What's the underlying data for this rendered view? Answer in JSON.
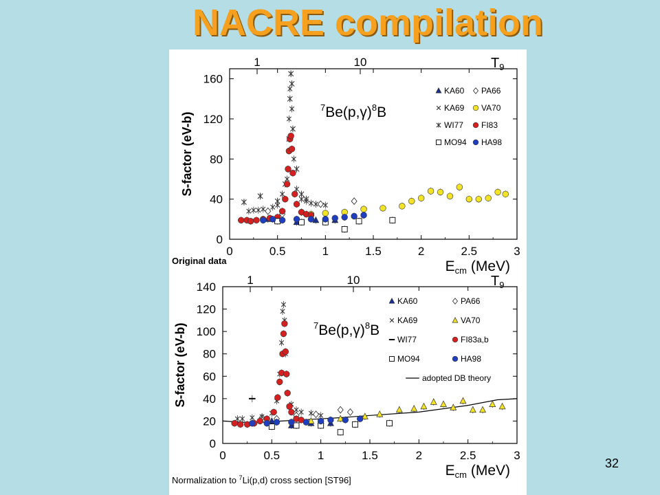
{
  "slide": {
    "title": "NACRE compilation",
    "number": "32"
  },
  "chart_data": [
    {
      "type": "scatter",
      "reaction_super_left": "7",
      "reaction_main": "Be(p,γ)",
      "reaction_super_right": "8",
      "reaction_end": "B",
      "ylabel": "S-factor (eV-b)",
      "xlabel_main": "E",
      "xlabel_sub": "cm",
      "xlabel_rest": " (MeV)",
      "top_axis_label": "T",
      "top_axis_sub": "9",
      "top_ticks": [
        {
          "v": 1,
          "label": "1"
        },
        {
          "v": 10,
          "label": "10"
        }
      ],
      "caption": "Original data",
      "xlim": [
        0,
        3
      ],
      "ylim": [
        0,
        170
      ],
      "xticks": [
        0,
        0.5,
        1,
        1.5,
        2,
        2.5,
        3
      ],
      "xtick_labels": [
        "0",
        "0.5",
        "1",
        "1.5",
        "2",
        "2.5",
        "3"
      ],
      "yticks": [
        0,
        40,
        80,
        120,
        160
      ],
      "ytick_labels": [
        "0",
        "40",
        "80",
        "120",
        "160"
      ],
      "legend": [
        {
          "label": "KA60",
          "marker": "tri",
          "color": "#1a2f8f"
        },
        {
          "label": "PA66",
          "marker": "diamond",
          "color": "#ffffff"
        },
        {
          "label": "KA69",
          "marker": "x",
          "color": "#333333"
        },
        {
          "label": "VA70",
          "marker": "circle",
          "color": "#f2e326"
        },
        {
          "label": "WI77",
          "marker": "star",
          "color": "#333333"
        },
        {
          "label": "FI83",
          "marker": "circle",
          "color": "#d42020"
        },
        {
          "label": "MO94",
          "marker": "square",
          "color": "#ffffff"
        },
        {
          "label": "HA98",
          "marker": "circle",
          "color": "#1f3fc0"
        }
      ],
      "series": [
        {
          "name": "KA60",
          "marker": "tri",
          "color": "#1a2f8f",
          "x": [
            0.4,
            0.5,
            0.7,
            0.9,
            1.1
          ],
          "y": [
            20,
            19,
            17,
            19,
            19
          ]
        },
        {
          "name": "PA66",
          "marker": "diamond",
          "color": "#ffffff",
          "x": [
            0.4,
            0.55,
            0.75,
            0.95,
            1.3
          ],
          "y": [
            28,
            25,
            27,
            35,
            38
          ]
        },
        {
          "name": "KA69",
          "marker": "x",
          "color": "#333333",
          "x": [
            0.2,
            0.25,
            0.3,
            0.35,
            0.45,
            0.5,
            0.55,
            0.6,
            0.62,
            0.63,
            0.65,
            0.67,
            0.7,
            0.75,
            0.8,
            0.85,
            0.9,
            1.0
          ],
          "y": [
            28,
            29,
            29,
            30,
            32,
            34,
            45,
            60,
            120,
            150,
            130,
            80,
            50,
            40,
            38,
            36,
            35,
            34
          ]
        },
        {
          "name": "VA70",
          "marker": "circle",
          "color": "#f2e326",
          "x": [
            0.85,
            1.0,
            1.2,
            1.4,
            1.6,
            1.8,
            1.9,
            2.0,
            2.1,
            2.2,
            2.3,
            2.4,
            2.5,
            2.6,
            2.7,
            2.8,
            2.88
          ],
          "y": [
            25,
            26,
            27,
            30,
            31,
            33,
            38,
            41,
            48,
            47,
            43,
            52,
            40,
            40,
            41,
            47,
            45
          ]
        },
        {
          "name": "WI77",
          "marker": "star",
          "color": "#333333",
          "x": [
            0.15,
            0.32,
            0.5,
            0.58,
            0.62,
            0.63,
            0.64,
            0.65,
            0.66,
            0.7,
            0.75,
            0.8
          ],
          "y": [
            37,
            43,
            38,
            55,
            100,
            140,
            165,
            155,
            110,
            70,
            45,
            40
          ]
        },
        {
          "name": "FI83",
          "marker": "circle",
          "color": "#d42020",
          "x": [
            0.12,
            0.18,
            0.22,
            0.28,
            0.35,
            0.42,
            0.5,
            0.55,
            0.58,
            0.6,
            0.61,
            0.62,
            0.63,
            0.64,
            0.65,
            0.66,
            0.68,
            0.7,
            0.75,
            0.8,
            0.85
          ],
          "y": [
            19,
            19,
            18,
            19,
            20,
            21,
            22,
            28,
            40,
            55,
            70,
            88,
            100,
            103,
            90,
            66,
            45,
            35,
            27,
            25,
            24
          ]
        },
        {
          "name": "MO94",
          "marker": "square",
          "color": "#ffffff",
          "x": [
            0.5,
            0.75,
            1.0,
            1.2,
            1.35,
            1.7
          ],
          "y": [
            18,
            17,
            17,
            10,
            18,
            19
          ]
        },
        {
          "name": "HA98",
          "marker": "circle",
          "color": "#1f3fc0",
          "x": [
            0.35,
            0.45,
            0.55,
            0.7,
            0.85,
            1.0,
            1.1,
            1.2,
            1.3,
            1.4
          ],
          "y": [
            19,
            20,
            19,
            20,
            20,
            20,
            21,
            22,
            23,
            24
          ]
        }
      ]
    },
    {
      "type": "scatter",
      "reaction_super_left": "7",
      "reaction_main": "Be(p,γ)",
      "reaction_super_right": "8",
      "reaction_end": "B",
      "ylabel": "S-factor (eV-b)",
      "xlabel_main": "E",
      "xlabel_sub": "cm",
      "xlabel_rest": " (MeV)",
      "top_axis_label": "T",
      "top_axis_sub": "9",
      "top_ticks": [
        {
          "v": 1,
          "label": "1"
        },
        {
          "v": 10,
          "label": "10"
        }
      ],
      "caption_prefix": "Normalization to ",
      "caption_super": "7",
      "caption_rest": "Li(p,d) cross section [ST96]",
      "xlim": [
        0,
        3
      ],
      "ylim": [
        0,
        140
      ],
      "xticks": [
        0,
        0.5,
        1,
        1.5,
        2,
        2.5,
        3
      ],
      "xtick_labels": [
        "0",
        "0.5",
        "1",
        "1.5",
        "2",
        "2.5",
        "3"
      ],
      "yticks": [
        0,
        20,
        40,
        60,
        80,
        100,
        120,
        140
      ],
      "ytick_labels": [
        "0",
        "20",
        "40",
        "60",
        "80",
        "100",
        "120",
        "140"
      ],
      "legend": [
        {
          "label": "KA60",
          "marker": "tri",
          "color": "#1a2f8f"
        },
        {
          "label": "PA66",
          "marker": "diamond",
          "color": "#ffffff"
        },
        {
          "label": "KA69",
          "marker": "x",
          "color": "#333333"
        },
        {
          "label": "VA70",
          "marker": "tri",
          "color": "#f2e326"
        },
        {
          "label": "WI77",
          "marker": "dash",
          "color": "#000000"
        },
        {
          "label": "FI83a,b",
          "marker": "circle",
          "color": "#d42020"
        },
        {
          "label": "MO94",
          "marker": "square",
          "color": "#ffffff"
        },
        {
          "label": "HA98",
          "marker": "circle",
          "color": "#1f3fc0"
        },
        {
          "label": "adopted DB theory",
          "marker": "line",
          "color": "#000000"
        }
      ],
      "theory": {
        "x": [
          0,
          0.2,
          0.4,
          0.6,
          0.8,
          1.0,
          1.2,
          1.5,
          2.0,
          2.5,
          2.8,
          3.0
        ],
        "y": [
          20,
          19,
          19,
          20,
          21,
          22,
          23,
          25,
          28,
          34,
          39,
          40
        ]
      },
      "series": [
        {
          "name": "KA60",
          "marker": "tri",
          "color": "#1a2f8f",
          "x": [
            0.3,
            0.5,
            0.7,
            0.9,
            1.1
          ],
          "y": [
            18,
            20,
            16,
            18,
            18
          ]
        },
        {
          "name": "PA66",
          "marker": "diamond",
          "color": "#ffffff",
          "x": [
            0.4,
            0.55,
            0.75,
            0.95,
            1.2,
            1.3
          ],
          "y": [
            23,
            22,
            25,
            26,
            30,
            28
          ]
        },
        {
          "name": "KA69",
          "marker": "x",
          "color": "#333333",
          "x": [
            0.15,
            0.2,
            0.3,
            0.4,
            0.5,
            0.55,
            0.58,
            0.6,
            0.61,
            0.62,
            0.63,
            0.64,
            0.66,
            0.7,
            0.75,
            0.8,
            0.9,
            1.0
          ],
          "y": [
            22,
            22,
            23,
            24,
            27,
            38,
            62,
            90,
            118,
            124,
            110,
            80,
            45,
            35,
            30,
            28,
            27,
            25
          ]
        },
        {
          "name": "VA70",
          "marker": "tri",
          "color": "#f2e326",
          "x": [
            0.9,
            1.0,
            1.2,
            1.45,
            1.6,
            1.8,
            1.95,
            2.05,
            2.15,
            2.25,
            2.35,
            2.45,
            2.55,
            2.65,
            2.75,
            2.85
          ],
          "y": [
            20,
            20,
            22,
            24,
            26,
            30,
            31,
            33,
            37,
            35,
            32,
            38,
            30,
            30,
            35,
            33
          ]
        },
        {
          "name": "WI77",
          "marker": "dash",
          "color": "#000000",
          "x": [
            0.3
          ],
          "y": [
            40
          ]
        },
        {
          "name": "FI83a,b",
          "marker": "circle",
          "color": "#d42020",
          "x": [
            0.12,
            0.18,
            0.25,
            0.32,
            0.38,
            0.45,
            0.52,
            0.56,
            0.58,
            0.6,
            0.61,
            0.62,
            0.63,
            0.64,
            0.65,
            0.66,
            0.68,
            0.7,
            0.75,
            0.8
          ],
          "y": [
            18,
            17,
            17,
            18,
            20,
            22,
            28,
            41,
            55,
            63,
            80,
            98,
            107,
            82,
            62,
            45,
            33,
            28,
            22,
            21
          ]
        },
        {
          "name": "MO94",
          "marker": "square",
          "color": "#ffffff",
          "x": [
            0.5,
            0.75,
            1.0,
            1.2,
            1.35,
            1.7
          ],
          "y": [
            15,
            16,
            16,
            10,
            17,
            18
          ]
        },
        {
          "name": "HA98",
          "marker": "circle",
          "color": "#1f3fc0",
          "x": [
            0.3,
            0.45,
            0.55,
            0.7,
            0.85,
            1.0,
            1.1,
            1.25,
            1.4
          ],
          "y": [
            18,
            18,
            19,
            19,
            19,
            20,
            21,
            21,
            22
          ]
        }
      ]
    }
  ]
}
